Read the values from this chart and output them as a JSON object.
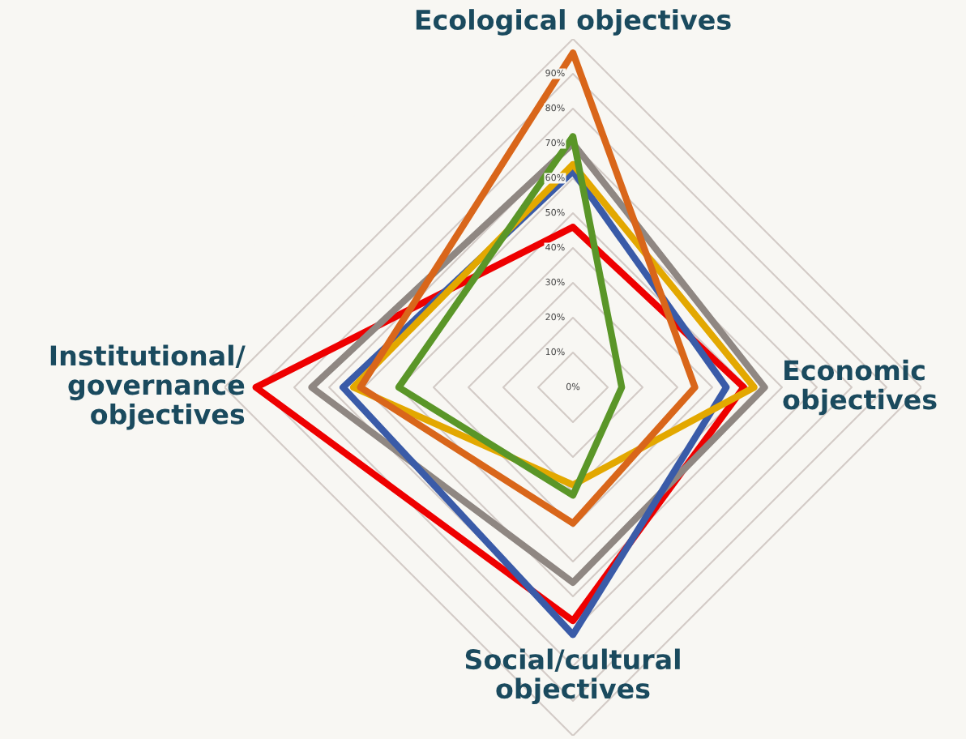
{
  "chart_data": {
    "type": "radar",
    "categories": [
      "Ecological objectives",
      "Economic\nobjectives",
      "Social/cultural\nobjectives",
      "Institutional/\ngovernance\nobjectives"
    ],
    "series": [
      {
        "color": "#ee0000",
        "values": [
          46,
          49,
          67,
          91
        ]
      },
      {
        "color": "#8f8782",
        "values": [
          70,
          55,
          56,
          75
        ]
      },
      {
        "color": "#3a5ba8",
        "values": [
          62,
          44,
          71,
          66
        ]
      },
      {
        "color": "#e3a800",
        "values": [
          64,
          52,
          28,
          63
        ]
      },
      {
        "color": "#d9661a",
        "values": [
          96,
          35,
          39,
          61
        ]
      },
      {
        "color": "#5a9628",
        "values": [
          72,
          14,
          31,
          50
        ]
      }
    ],
    "ylim": [
      0,
      100
    ],
    "yticks": [
      {
        "value": 0,
        "label": "0%"
      },
      {
        "value": 10,
        "label": "10%"
      },
      {
        "value": 20,
        "label": "20%"
      },
      {
        "value": 30,
        "label": "30%"
      },
      {
        "value": 40,
        "label": "40%"
      },
      {
        "value": 50,
        "label": "50%"
      },
      {
        "value": 60,
        "label": "60%"
      },
      {
        "value": 70,
        "label": "70%"
      },
      {
        "value": 80,
        "label": "80%"
      },
      {
        "value": 90,
        "label": "90%"
      }
    ],
    "grid": true
  }
}
